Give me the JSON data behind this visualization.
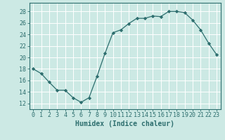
{
  "xlabel": "Humidex (Indice chaleur)",
  "x": [
    0,
    1,
    2,
    3,
    4,
    5,
    6,
    7,
    8,
    9,
    10,
    11,
    12,
    13,
    14,
    15,
    16,
    17,
    18,
    19,
    20,
    21,
    22,
    23
  ],
  "y": [
    18.0,
    17.2,
    15.7,
    14.3,
    14.3,
    13.0,
    12.2,
    13.0,
    16.7,
    20.7,
    24.3,
    24.8,
    25.9,
    26.8,
    26.8,
    27.2,
    27.1,
    28.0,
    28.0,
    27.8,
    26.5,
    24.8,
    22.5,
    20.5
  ],
  "line_color": "#2d6e6e",
  "marker": "D",
  "marker_size": 2.2,
  "bg_color": "#cce9e4",
  "grid_color": "#ffffff",
  "tick_color": "#2d6e6e",
  "label_color": "#2d6e6e",
  "ylim": [
    11.0,
    29.5
  ],
  "yticks": [
    12,
    14,
    16,
    18,
    20,
    22,
    24,
    26,
    28
  ],
  "xlim": [
    -0.5,
    23.5
  ],
  "xticks": [
    0,
    1,
    2,
    3,
    4,
    5,
    6,
    7,
    8,
    9,
    10,
    11,
    12,
    13,
    14,
    15,
    16,
    17,
    18,
    19,
    20,
    21,
    22,
    23
  ],
  "tick_font_size": 6.0,
  "label_font_size": 7.0,
  "linewidth": 0.9
}
